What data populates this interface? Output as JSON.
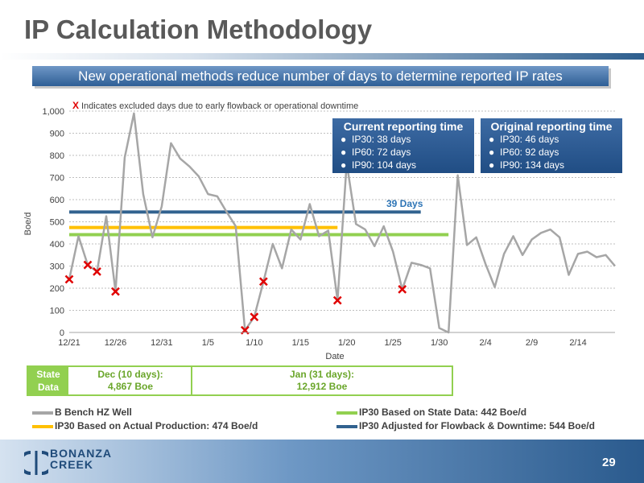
{
  "title": "IP Calculation Methodology",
  "banner": "New operational methods reduce number of days to determine reported IP rates",
  "excluded_note": {
    "marker": "X",
    "text": "Indicates excluded days due to early flowback or operational downtime"
  },
  "current_box": {
    "title": "Current reporting time",
    "items": [
      "IP30: 38 days",
      "IP60: 72 days",
      "IP90: 104 days"
    ]
  },
  "original_box": {
    "title": "Original reporting time",
    "items": [
      "IP30: 46 days",
      "IP60: 92 days",
      "IP90: 134 days"
    ]
  },
  "days_label": "39 Days",
  "state_data": {
    "label_line1": "State",
    "label_line2": "Data",
    "dec_line1": "Dec (10 days):",
    "dec_line2": "4,867 Boe",
    "jan_line1": "Jan (31 days):",
    "jan_line2": "12,912 Boe"
  },
  "legend": [
    {
      "label": "B Bench HZ Well",
      "color": "#a6a6a6"
    },
    {
      "label": "IP30 Based on State Data: 442 Boe/d",
      "color": "#92d050"
    },
    {
      "label": "IP30 Based on Actual Production: 474 Boe/d",
      "color": "#ffc000"
    },
    {
      "label": "IP30 Adjusted for Flowback & Downtime: 544 Boe/d",
      "color": "#31628f"
    }
  ],
  "page_number": "29",
  "logo": {
    "line1": "BONANZA",
    "line2": "CREEK"
  },
  "chart_data": {
    "type": "line",
    "xlabel": "Date",
    "ylabel": "Boe/d",
    "ylim": [
      0,
      1000
    ],
    "yticks": [
      "0",
      "100",
      "200",
      "300",
      "400",
      "500",
      "600",
      "700",
      "800",
      "900",
      "1,000"
    ],
    "xticks": [
      "12/21",
      "12/26",
      "12/31",
      "1/5",
      "1/10",
      "1/15",
      "1/20",
      "1/25",
      "1/30",
      "2/4",
      "2/9",
      "2/14"
    ],
    "grid": true,
    "series": [
      {
        "name": "B Bench HZ Well",
        "color": "#a6a6a6",
        "values": [
          240,
          435,
          305,
          275,
          525,
          185,
          790,
          990,
          625,
          430,
          570,
          855,
          785,
          750,
          705,
          625,
          615,
          545,
          480,
          10,
          70,
          230,
          400,
          290,
          465,
          420,
          580,
          435,
          460,
          145,
          765,
          490,
          465,
          390,
          480,
          365,
          195,
          315,
          305,
          290,
          20,
          0,
          710,
          395,
          430,
          310,
          205,
          355,
          435,
          350,
          420,
          450,
          465,
          430,
          260,
          355,
          365,
          340,
          350,
          300
        ]
      }
    ],
    "excluded_points": [
      [
        0,
        240
      ],
      [
        2,
        305
      ],
      [
        3,
        275
      ],
      [
        5,
        185
      ],
      [
        19,
        10
      ],
      [
        20,
        70
      ],
      [
        21,
        230
      ],
      [
        29,
        145
      ],
      [
        36,
        195
      ]
    ],
    "reference_lines": [
      {
        "name": "IP30 Adjusted for Flowback & Downtime: 544 Boe/d",
        "value": 544,
        "color": "#31628f",
        "x_start": 0,
        "x_end": 38
      },
      {
        "name": "IP30 Based on Actual Production: 474 Boe/d",
        "value": 474,
        "color": "#ffc000",
        "x_start": 0,
        "x_end": 29
      },
      {
        "name": "IP30 Based on State Data: 442 Boe/d",
        "value": 442,
        "color": "#92d050",
        "x_start": 0,
        "x_end": 41
      }
    ]
  }
}
